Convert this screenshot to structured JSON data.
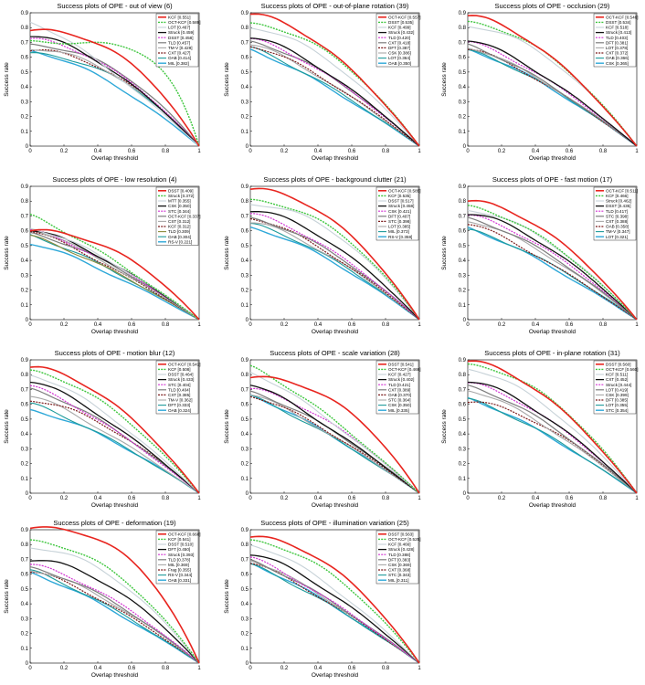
{
  "styles": {
    "red": {
      "color": "#e8251f",
      "dash": "",
      "w": 1.6
    },
    "green": {
      "color": "#3ec63e",
      "dash": "2,1.2",
      "w": 1.4
    },
    "lightgray": {
      "color": "#c7d2d8",
      "dash": "",
      "w": 1.1
    },
    "black": {
      "color": "#111111",
      "dash": "",
      "w": 1.3
    },
    "magenta": {
      "color": "#d233d2",
      "dash": "2,1.2",
      "w": 1.2
    },
    "darkgray": {
      "color": "#7d7d7d",
      "dash": "",
      "w": 1.2
    },
    "darkred": {
      "color": "#7a1a1a",
      "dash": "2,1.2",
      "w": 1.2
    },
    "silver": {
      "color": "#a8a8a8",
      "dash": "",
      "w": 1.1
    },
    "blue": {
      "color": "#2ea8d8",
      "dash": "",
      "w": 1.4
    },
    "teal": {
      "color": "#1c9a9a",
      "dash": "",
      "w": 1.1
    },
    "olive": {
      "color": "#8a8a3a",
      "dash": "",
      "w": 1.1
    }
  },
  "axes": {
    "xlabel": "Overlap threshold",
    "ylabel": "Success rate",
    "xticks": [
      "0",
      "0.2",
      "0.4",
      "0.6",
      "0.8",
      "1"
    ],
    "yticks": [
      "0",
      "0.1",
      "0.2",
      "0.3",
      "0.4",
      "0.5",
      "0.6",
      "0.7",
      "0.8",
      "0.9"
    ]
  },
  "chart_data": [
    {
      "type": "line",
      "title": "Success plots of OPE - out of view (6)",
      "xlabel": "Overlap threshold",
      "ylabel": "Success rate",
      "xlim": [
        0,
        1
      ],
      "ylim": [
        0,
        0.9
      ],
      "series": [
        {
          "name": "KCF [0.551]",
          "style": "red",
          "start": 0.78
        },
        {
          "name": "OCT-KCF [0.589]",
          "style": "green",
          "start": 0.7
        },
        {
          "name": "LOT [0.467]",
          "style": "lightgray",
          "start": 0.84
        },
        {
          "name": "Struck [0.459]",
          "style": "black",
          "start": 0.75
        },
        {
          "name": "DSST [0.458]",
          "style": "magenta",
          "start": 0.72
        },
        {
          "name": "TLD [0.457]",
          "style": "darkgray",
          "start": 0.68
        },
        {
          "name": "TM-V [0.429]",
          "style": "silver",
          "start": 0.66
        },
        {
          "name": "CXT [0.427]",
          "style": "darkred",
          "start": 0.65
        },
        {
          "name": "OAB [0.414]",
          "style": "teal",
          "start": 0.62
        },
        {
          "name": "MIL [0.382]",
          "style": "blue",
          "start": 0.64
        }
      ]
    },
    {
      "type": "line",
      "title": "Success plots of OPE - out-of-plane rotation (39)",
      "xlabel": "Overlap threshold",
      "ylabel": "Success rate",
      "xlim": [
        0,
        1
      ],
      "ylim": [
        0,
        0.9
      ],
      "series": [
        {
          "name": "OCT-KCF [0.557]",
          "style": "red",
          "start": 0.89
        },
        {
          "name": "DSST [0.535]",
          "style": "green",
          "start": 0.82
        },
        {
          "name": "KCF [0.499]",
          "style": "lightgray",
          "start": 0.8
        },
        {
          "name": "Struck [0.432]",
          "style": "black",
          "start": 0.74
        },
        {
          "name": "TLD [0.420]",
          "style": "magenta",
          "start": 0.72
        },
        {
          "name": "CXT [0.418]",
          "style": "darkgray",
          "start": 0.7
        },
        {
          "name": "DFT [0.387]",
          "style": "darkred",
          "start": 0.68
        },
        {
          "name": "CSK [0.386]",
          "style": "silver",
          "start": 0.69
        },
        {
          "name": "LOT [0.364]",
          "style": "teal",
          "start": 0.66
        },
        {
          "name": "OAB [0.350]",
          "style": "blue",
          "start": 0.65
        }
      ]
    },
    {
      "type": "line",
      "title": "Success plots of OPE - occlusion (29)",
      "xlabel": "Overlap threshold",
      "ylabel": "Success rate",
      "xlim": [
        0,
        1
      ],
      "ylim": [
        0,
        0.9
      ],
      "series": [
        {
          "name": "OCT-KCF [0.546]",
          "style": "red",
          "start": 0.88
        },
        {
          "name": "DSST [0.534]",
          "style": "green",
          "start": 0.83
        },
        {
          "name": "KCF [0.518]",
          "style": "lightgray",
          "start": 0.81
        },
        {
          "name": "Struck [0.413]",
          "style": "black",
          "start": 0.72
        },
        {
          "name": "TLD [0.403]",
          "style": "magenta",
          "start": 0.7
        },
        {
          "name": "DFT [0.381]",
          "style": "darkgray",
          "start": 0.68
        },
        {
          "name": "LOT [0.378]",
          "style": "silver",
          "start": 0.67
        },
        {
          "name": "CXT [0.372]",
          "style": "darkred",
          "start": 0.66
        },
        {
          "name": "OAB [0.366]",
          "style": "teal",
          "start": 0.64
        },
        {
          "name": "CSK [0.365]",
          "style": "blue",
          "start": 0.65
        }
      ]
    },
    {
      "type": "line",
      "title": "Success plots of OPE - low resolution (4)",
      "xlabel": "Overlap threshold",
      "ylabel": "Success rate",
      "xlim": [
        0,
        1
      ],
      "ylim": [
        0,
        0.9
      ],
      "series": [
        {
          "name": "DSST [0.409]",
          "style": "red",
          "start": 0.6
        },
        {
          "name": "Struck [0.372]",
          "style": "green",
          "start": 0.7
        },
        {
          "name": "MTT [0.355]",
          "style": "lightgray",
          "start": 0.62
        },
        {
          "name": "CSK [0.350]",
          "style": "black",
          "start": 0.61
        },
        {
          "name": "STC [0.344]",
          "style": "magenta",
          "start": 0.6
        },
        {
          "name": "OCT-KCF [0.337]",
          "style": "darkgray",
          "start": 0.58
        },
        {
          "name": "CST [0.312]",
          "style": "silver",
          "start": 0.62
        },
        {
          "name": "KCF [0.312]",
          "style": "darkred",
          "start": 0.6
        },
        {
          "name": "TLD [0.309]",
          "style": "olive",
          "start": 0.56
        },
        {
          "name": "OAB [0.304]",
          "style": "teal",
          "start": 0.57
        },
        {
          "name": "RS-V [0.221]",
          "style": "blue",
          "start": 0.52
        }
      ]
    },
    {
      "type": "line",
      "title": "Success plots of OPE - background clutter (21)",
      "xlabel": "Overlap threshold",
      "ylabel": "Success rate",
      "xlim": [
        0,
        1
      ],
      "ylim": [
        0,
        0.9
      ],
      "series": [
        {
          "name": "OCT-KCF [0.585]",
          "style": "red",
          "start": 0.88
        },
        {
          "name": "KCF [0.535]",
          "style": "green",
          "start": 0.8
        },
        {
          "name": "DSST [0.517]",
          "style": "lightgray",
          "start": 0.78
        },
        {
          "name": "Struck [0.458]",
          "style": "black",
          "start": 0.74
        },
        {
          "name": "CSK [0.421]",
          "style": "magenta",
          "start": 0.71
        },
        {
          "name": "DFT [0.407]",
          "style": "darkgray",
          "start": 0.68
        },
        {
          "name": "STC [0.398]",
          "style": "darkred",
          "start": 0.69
        },
        {
          "name": "LOT [0.385]",
          "style": "silver",
          "start": 0.66
        },
        {
          "name": "MIL [0.373]",
          "style": "teal",
          "start": 0.64
        },
        {
          "name": "RS-V [0.358]",
          "style": "blue",
          "start": 0.62
        }
      ]
    },
    {
      "type": "line",
      "title": "Success plots of OPE - fast motion (17)",
      "xlabel": "Overlap threshold",
      "ylabel": "Success rate",
      "xlim": [
        0,
        1
      ],
      "ylim": [
        0,
        0.9
      ],
      "series": [
        {
          "name": "OCT-KCF [0.511]",
          "style": "red",
          "start": 0.8
        },
        {
          "name": "KCF [0.466]",
          "style": "green",
          "start": 0.76
        },
        {
          "name": "Struck [0.462]",
          "style": "lightgray",
          "start": 0.74
        },
        {
          "name": "DSST [0.435]",
          "style": "black",
          "start": 0.72
        },
        {
          "name": "TLD [0.417]",
          "style": "magenta",
          "start": 0.7
        },
        {
          "name": "STC [0.398]",
          "style": "darkgray",
          "start": 0.68
        },
        {
          "name": "CXT [0.388]",
          "style": "silver",
          "start": 0.67
        },
        {
          "name": "OAB [0.358]",
          "style": "darkred",
          "start": 0.65
        },
        {
          "name": "TM-V [0.347]",
          "style": "teal",
          "start": 0.6
        },
        {
          "name": "LOT [0.321]",
          "style": "blue",
          "start": 0.62
        }
      ]
    },
    {
      "type": "line",
      "title": "Success plots of OPE - motion blur (12)",
      "xlabel": "Overlap threshold",
      "ylabel": "Success rate",
      "xlim": [
        0,
        1
      ],
      "ylim": [
        0,
        0.9
      ],
      "series": [
        {
          "name": "OCT-KCF [0.541]",
          "style": "red",
          "start": 0.85
        },
        {
          "name": "KCF [0.508]",
          "style": "green",
          "start": 0.82
        },
        {
          "name": "DSST [0.464]",
          "style": "lightgray",
          "start": 0.8
        },
        {
          "name": "Struck [0.433]",
          "style": "black",
          "start": 0.76
        },
        {
          "name": "STC [0.404]",
          "style": "magenta",
          "start": 0.72
        },
        {
          "name": "TLD [0.404]",
          "style": "darkgray",
          "start": 0.7
        },
        {
          "name": "CXT [0.385]",
          "style": "darkred",
          "start": 0.63
        },
        {
          "name": "TM-V [0.362]",
          "style": "silver",
          "start": 0.66
        },
        {
          "name": "DFT [0.333]",
          "style": "teal",
          "start": 0.6
        },
        {
          "name": "OAB [0.324]",
          "style": "blue",
          "start": 0.56
        }
      ]
    },
    {
      "type": "line",
      "title": "Success plots of OPE - scale variation (28)",
      "xlabel": "Overlap threshold",
      "ylabel": "Success rate",
      "xlim": [
        0,
        1
      ],
      "ylim": [
        0,
        0.9
      ],
      "series": [
        {
          "name": "DSST [0.541]",
          "style": "red",
          "start": 0.78
        },
        {
          "name": "OCT-KCF [0.469]",
          "style": "green",
          "start": 0.85
        },
        {
          "name": "KCF [0.427]",
          "style": "lightgray",
          "start": 0.82
        },
        {
          "name": "Struck [0.402]",
          "style": "black",
          "start": 0.74
        },
        {
          "name": "TLD [0.421]",
          "style": "magenta",
          "start": 0.7
        },
        {
          "name": "CXT [0.389]",
          "style": "darkgray",
          "start": 0.68
        },
        {
          "name": "OAB [0.370]",
          "style": "darkred",
          "start": 0.66
        },
        {
          "name": "STC [0.364]",
          "style": "silver",
          "start": 0.67
        },
        {
          "name": "CSK [0.350]",
          "style": "teal",
          "start": 0.65
        },
        {
          "name": "MIL [0.335]",
          "style": "blue",
          "start": 0.66
        }
      ]
    },
    {
      "type": "line",
      "title": "Success plots of OPE - in-plane rotation (31)",
      "xlabel": "Overlap threshold",
      "ylabel": "Success rate",
      "xlim": [
        0,
        1
      ],
      "ylim": [
        0,
        0.9
      ],
      "series": [
        {
          "name": "DSST [0.560]",
          "style": "red",
          "start": 0.89
        },
        {
          "name": "OCT-KCF [0.560]",
          "style": "green",
          "start": 0.86
        },
        {
          "name": "KCF [0.511]",
          "style": "lightgray",
          "start": 0.84
        },
        {
          "name": "CXT [0.452]",
          "style": "black",
          "start": 0.76
        },
        {
          "name": "Struck [0.444]",
          "style": "magenta",
          "start": 0.74
        },
        {
          "name": "LOT [0.419]",
          "style": "darkgray",
          "start": 0.72
        },
        {
          "name": "CSK [0.399]",
          "style": "silver",
          "start": 0.7
        },
        {
          "name": "DFT [0.385]",
          "style": "darkred",
          "start": 0.62
        },
        {
          "name": "LOT [0.355]",
          "style": "teal",
          "start": 0.63
        },
        {
          "name": "STC [0.354]",
          "style": "blue",
          "start": 0.64
        }
      ]
    },
    {
      "type": "line",
      "title": "Success plots of OPE - deformation (19)",
      "xlabel": "Overlap threshold",
      "ylabel": "Success rate",
      "xlim": [
        0,
        1
      ],
      "ylim": [
        0,
        0.9
      ],
      "series": [
        {
          "name": "OCT-KCF [0.668]",
          "style": "red",
          "start": 0.91
        },
        {
          "name": "KCF [0.541]",
          "style": "green",
          "start": 0.82
        },
        {
          "name": "DSST [0.510]",
          "style": "lightgray",
          "start": 0.78
        },
        {
          "name": "DFT [0.450]",
          "style": "black",
          "start": 0.7
        },
        {
          "name": "Struck [0.393]",
          "style": "magenta",
          "start": 0.66
        },
        {
          "name": "TLD [0.378]",
          "style": "darkgray",
          "start": 0.64
        },
        {
          "name": "MIL [0.369]",
          "style": "silver",
          "start": 0.63
        },
        {
          "name": "Frag [0.355]",
          "style": "darkred",
          "start": 0.62
        },
        {
          "name": "RS-V [0.344]",
          "style": "teal",
          "start": 0.62
        },
        {
          "name": "OAB [0.331]",
          "style": "blue",
          "start": 0.61
        }
      ]
    },
    {
      "type": "line",
      "title": "Success plots of OPE - illumination variation (25)",
      "xlabel": "Overlap threshold",
      "ylabel": "Success rate",
      "xlim": [
        0,
        1
      ],
      "ylim": [
        0,
        0.9
      ],
      "series": [
        {
          "name": "DSST [0.563]",
          "style": "red",
          "start": 0.85
        },
        {
          "name": "OCT-KCF [0.525]",
          "style": "green",
          "start": 0.82
        },
        {
          "name": "KCF [0.466]",
          "style": "lightgray",
          "start": 0.8
        },
        {
          "name": "Struck [0.428]",
          "style": "black",
          "start": 0.74
        },
        {
          "name": "TLD [0.388]",
          "style": "magenta",
          "start": 0.71
        },
        {
          "name": "DFT [0.383]",
          "style": "darkgray",
          "start": 0.69
        },
        {
          "name": "CSK [0.369]",
          "style": "silver",
          "start": 0.7
        },
        {
          "name": "CXT [0.368]",
          "style": "darkred",
          "start": 0.68
        },
        {
          "name": "STC [0.343]",
          "style": "teal",
          "start": 0.66
        },
        {
          "name": "MIL [0.311]",
          "style": "blue",
          "start": 0.67
        }
      ]
    }
  ]
}
